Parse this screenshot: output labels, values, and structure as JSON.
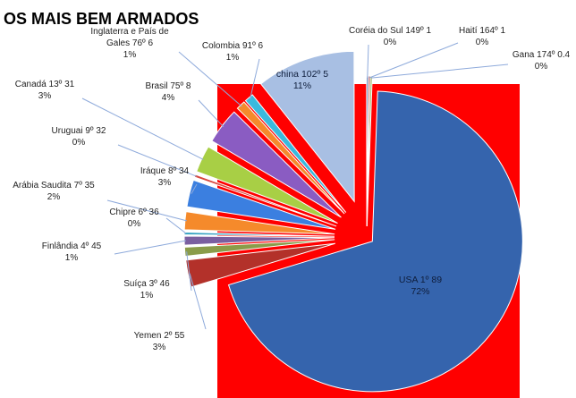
{
  "chart_data": {
    "type": "pie",
    "title": "OS MAIS BEM ARMADOS",
    "background_color": "#ff0000",
    "slices": [
      {
        "label": "USA 1º 89",
        "pct": "72%",
        "value": 72,
        "color": "#3564ad"
      },
      {
        "label": "Yemen 2º 55",
        "pct": "3%",
        "value": 3,
        "color": "#b3312a"
      },
      {
        "label": "Suíça 3º 46",
        "pct": "1%",
        "value": 1,
        "color": "#8a9c4a"
      },
      {
        "label": "Finlândia 4º 45",
        "pct": "1%",
        "value": 1,
        "color": "#7a5fa0"
      },
      {
        "label": "Chipre 6º 36",
        "pct": "0%",
        "value": 0.3,
        "color": "#36a3c2"
      },
      {
        "label": "Arábia Saudita 7º 35",
        "pct": "2%",
        "value": 2,
        "color": "#f58a2b"
      },
      {
        "label": "Iráque 8º 34",
        "pct": "3%",
        "value": 3,
        "color": "#3b7fe0"
      },
      {
        "label": "Uruguai 9º 32",
        "pct": "0%",
        "value": 0.3,
        "color": "#d9463d"
      },
      {
        "label": "Canadá 13º 31",
        "pct": "3%",
        "value": 3,
        "color": "#a8cf45"
      },
      {
        "label": "Brasil 75º 8",
        "pct": "4%",
        "value": 4,
        "color": "#8a5cc2"
      },
      {
        "label": "Inglaterra e País de Gales 76º 6",
        "pct": "1%",
        "value": 1,
        "color": "#f58a2b"
      },
      {
        "label": "Colombia 91º 6",
        "pct": "1%",
        "value": 1,
        "color": "#3ab9dd"
      },
      {
        "label": "china 102º 5",
        "pct": "11%",
        "value": 11,
        "color": "#a8bfe3"
      },
      {
        "label": "Coréia do Sul 149º 1",
        "pct": "0%",
        "value": 0.2,
        "color": "#4a6fb0"
      },
      {
        "label": "Haití 164º 1",
        "pct": "0%",
        "value": 0.2,
        "color": "#b54a45"
      },
      {
        "label": "Gana 174º 0.4",
        "pct": "0%",
        "value": 0.2,
        "color": "#93ad50"
      }
    ]
  }
}
